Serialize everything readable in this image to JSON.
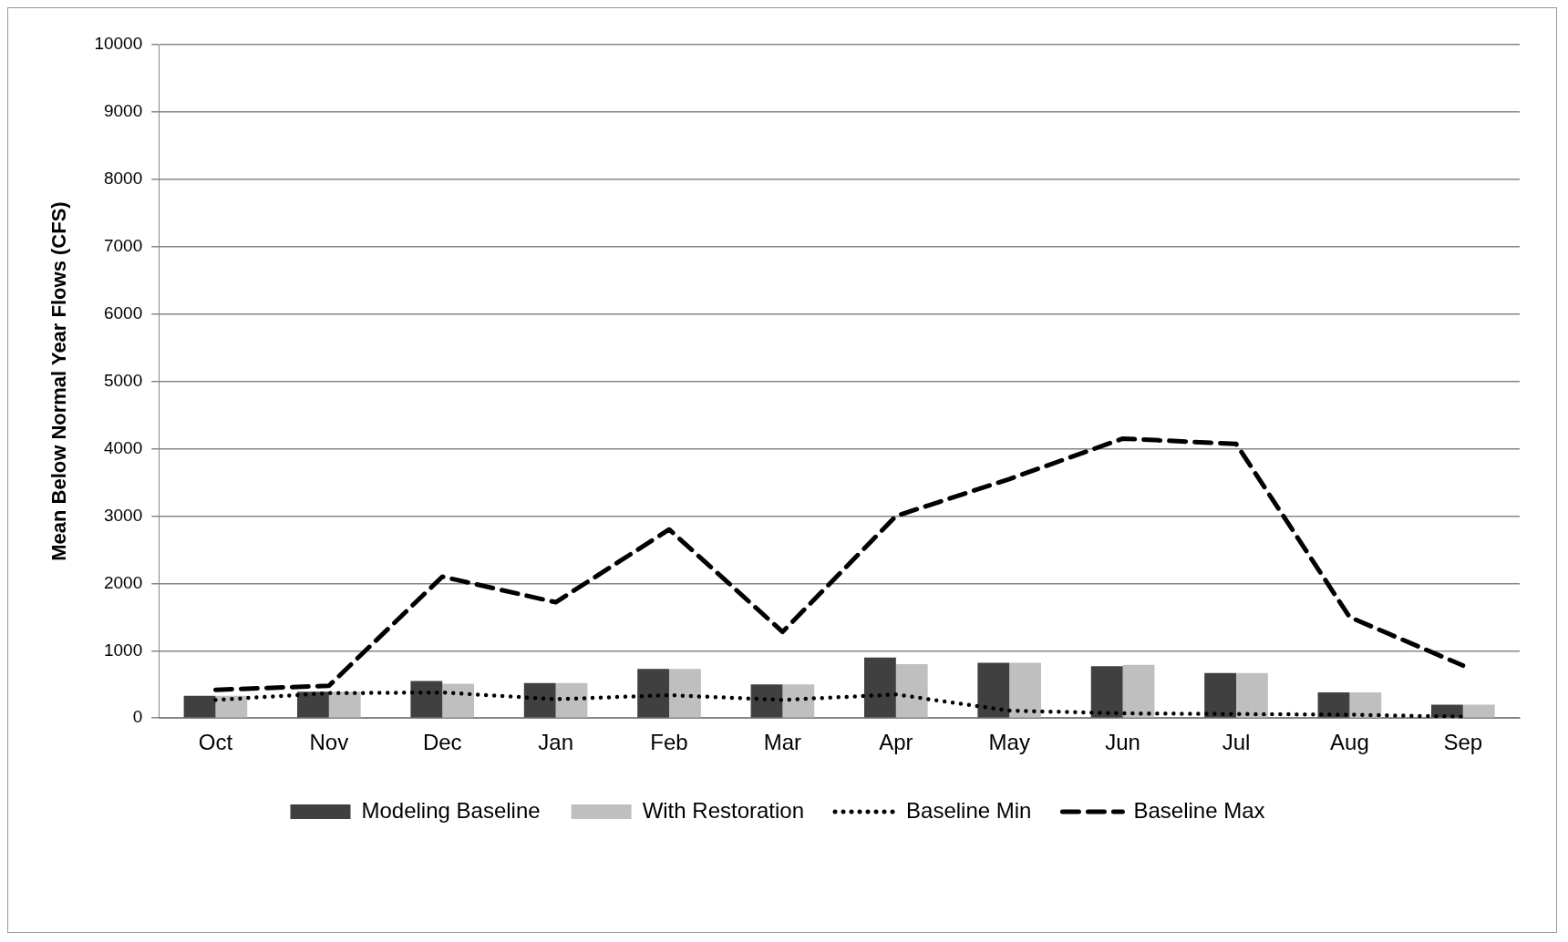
{
  "chart_data": {
    "type": "bar",
    "ylabel": "Mean Below Normal Year Flows (CFS)",
    "categories": [
      "Oct",
      "Nov",
      "Dec",
      "Jan",
      "Feb",
      "Mar",
      "Apr",
      "May",
      "Jun",
      "Jul",
      "Aug",
      "Sep"
    ],
    "series": [
      {
        "name": "Modeling Baseline",
        "color": "#404040",
        "values": [
          330,
          390,
          550,
          520,
          730,
          500,
          900,
          820,
          770,
          670,
          380,
          200
        ]
      },
      {
        "name": "With Restoration",
        "color": "#bfbfbf",
        "values": [
          330,
          390,
          510,
          520,
          730,
          500,
          800,
          820,
          790,
          670,
          380,
          200
        ]
      },
      {
        "name": "Baseline Min",
        "type": "line",
        "color": "#000000",
        "line_style": "dotted",
        "values": [
          270,
          370,
          380,
          280,
          340,
          270,
          350,
          110,
          70,
          60,
          50,
          20
        ]
      },
      {
        "name": "Baseline Max",
        "type": "line",
        "color": "#000000",
        "line_style": "dashed",
        "values": [
          420,
          480,
          2100,
          1720,
          2800,
          1280,
          3000,
          3550,
          4150,
          4070,
          1500,
          780
        ]
      }
    ],
    "ylim": [
      0,
      10000
    ],
    "yticks": [
      0,
      1000,
      2000,
      3000,
      4000,
      5000,
      6000,
      7000,
      8000,
      9000,
      10000
    ],
    "grid": "y",
    "legend": "bottom",
    "marker": "none"
  }
}
